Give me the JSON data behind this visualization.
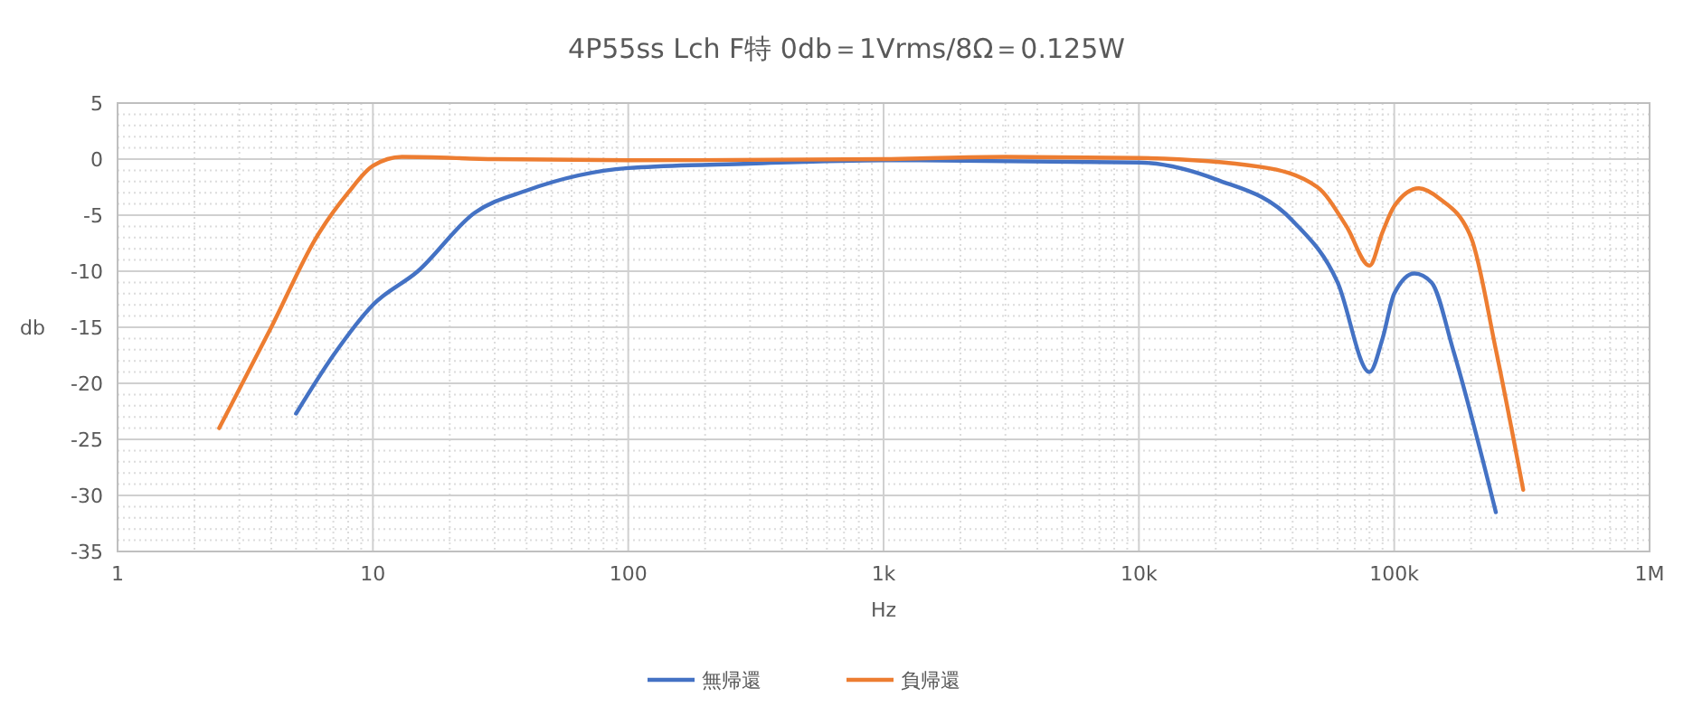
{
  "chart_data": {
    "type": "line",
    "title": "4P55ss Lch F特 0db＝1Vrms/8Ω＝0.125W",
    "xlabel": "Hz",
    "ylabel": "db",
    "log": "x",
    "grid": true,
    "legend": "bottom",
    "marker": "none",
    "line_style": "solid",
    "xlim": [
      1,
      1000000
    ],
    "xticks": [
      1,
      10,
      100,
      {
        "value": 1000,
        "label": "1k"
      },
      {
        "value": 10000,
        "label": "10k"
      },
      {
        "value": 100000,
        "label": "100k"
      },
      {
        "value": 1000000,
        "label": "1M"
      }
    ],
    "ylim": [
      -35,
      5
    ],
    "yticks": [
      -35,
      -30,
      -25,
      -20,
      -15,
      -10,
      -5,
      0,
      5
    ],
    "series": [
      {
        "name": "無帰還",
        "color": "#4472c4",
        "x": [
          5,
          7,
          10,
          15,
          25,
          40,
          100,
          300,
          1000,
          3000,
          10000,
          20000,
          40000,
          60000,
          80000,
          90000,
          100000,
          120000,
          140000,
          170000,
          250000
        ],
        "values": [
          -22.7,
          -17.5,
          -13,
          -10,
          -4.8,
          -2.8,
          -0.8,
          -0.4,
          -0.1,
          null,
          -0.3,
          -1.8,
          -5.5,
          -11,
          -19,
          -16,
          -12,
          -10.2,
          -11,
          -17,
          -31.5
        ]
      },
      {
        "name": "負帰還",
        "color": "#ed7d31",
        "x": [
          2.5,
          4,
          6,
          8,
          10,
          13,
          30,
          100,
          1000,
          3000,
          10000,
          30000,
          50000,
          65000,
          80000,
          90000,
          100000,
          125000,
          150000,
          200000,
          250000,
          320000
        ],
        "values": [
          -24,
          -15,
          -7,
          -3,
          -0.6,
          0.2,
          0,
          -0.1,
          0,
          0.2,
          0.1,
          -0.7,
          -2.5,
          -6,
          -9.5,
          -6.5,
          -4.2,
          -2.6,
          -3.5,
          -7,
          -17,
          -29.5
        ]
      }
    ]
  }
}
